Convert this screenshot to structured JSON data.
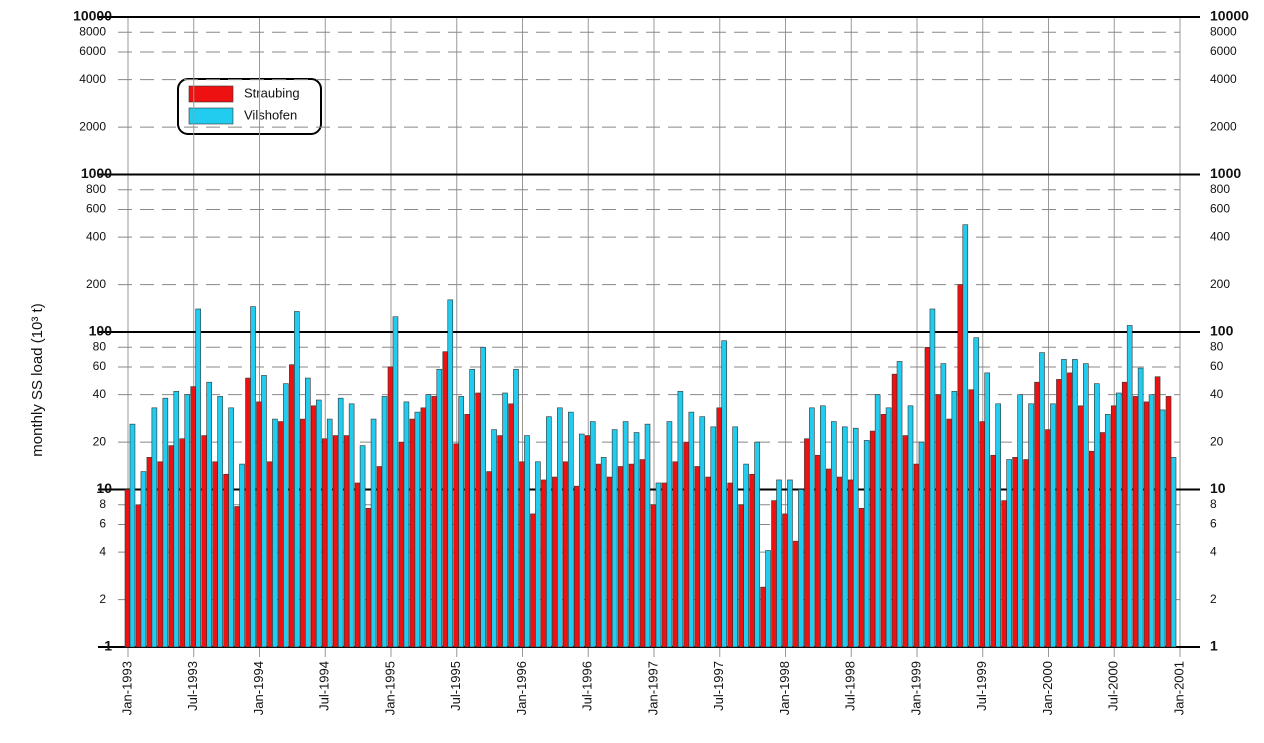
{
  "chart_data": {
    "type": "bar",
    "ylabel": "monthly SS load (10³ t)",
    "log_scale": true,
    "grid": true,
    "legend_position": "upper-left",
    "xlim": [
      0,
      96
    ],
    "xticks": [
      {
        "value": 0,
        "label": "Jan-1993"
      },
      {
        "value": 6,
        "label": "Jul-1993"
      },
      {
        "value": 12,
        "label": "Jan-1994"
      },
      {
        "value": 18,
        "label": "Jul-1994"
      },
      {
        "value": 24,
        "label": "Jan-1995"
      },
      {
        "value": 30,
        "label": "Jul-1995"
      },
      {
        "value": 36,
        "label": "Jan-1996"
      },
      {
        "value": 42,
        "label": "Jul-1996"
      },
      {
        "value": 48,
        "label": "Jan-1997"
      },
      {
        "value": 54,
        "label": "Jul-1997"
      },
      {
        "value": 60,
        "label": "Jan-1998"
      },
      {
        "value": 66,
        "label": "Jul-1998"
      },
      {
        "value": 72,
        "label": "Jan-1999"
      },
      {
        "value": 78,
        "label": "Jul-1999"
      },
      {
        "value": 84,
        "label": "Jan-2000"
      },
      {
        "value": 90,
        "label": "Jul-2000"
      },
      {
        "value": 96,
        "label": "Jan-2001"
      }
    ],
    "ylim": [
      1,
      10000
    ],
    "yticks": [
      1,
      2,
      4,
      6,
      8,
      10,
      20,
      40,
      60,
      80,
      100,
      200,
      400,
      600,
      800,
      1000,
      2000,
      4000,
      6000,
      8000,
      10000
    ],
    "series": [
      {
        "name": "Straubing",
        "color": "#ee1111",
        "values": [
          10,
          8,
          16,
          15,
          19,
          21,
          45,
          22,
          15,
          12.5,
          7.8,
          51,
          36,
          15,
          27,
          62,
          28,
          34,
          21,
          22,
          22,
          11,
          7.6,
          14,
          60,
          20,
          28,
          33,
          39,
          75,
          19.5,
          30,
          41,
          13,
          22,
          35,
          15,
          7,
          11.5,
          12,
          15,
          10.5,
          22,
          14.5,
          12,
          14,
          14.5,
          15.5,
          8,
          11,
          15,
          20,
          14,
          12,
          33,
          11,
          8,
          12.5,
          2.4,
          8.5,
          7,
          4.7,
          21,
          16.5,
          13.5,
          12,
          11.5,
          7.6,
          23.5,
          30,
          54,
          22,
          14.5,
          80,
          40,
          28,
          200,
          43,
          27,
          16.5,
          8.5,
          16,
          15.5,
          48,
          24,
          50,
          55,
          34,
          17.5,
          23,
          34,
          48,
          39,
          36,
          52,
          39
        ]
      },
      {
        "name": "Vilshofen",
        "color": "#22ccee",
        "values": [
          26,
          13,
          33,
          38,
          42,
          40,
          140,
          48,
          39,
          33,
          14.5,
          145,
          53,
          28,
          47,
          135,
          51,
          37,
          28,
          38,
          35,
          19,
          28,
          39,
          125,
          36,
          31,
          40,
          58,
          160,
          39,
          58,
          80,
          24,
          41,
          58,
          22,
          15,
          29,
          33,
          31,
          22.5,
          27,
          16,
          24,
          27,
          23,
          26,
          11,
          27,
          42,
          31,
          29,
          25,
          88,
          25,
          14.5,
          20,
          4.1,
          11.5,
          11.5,
          10,
          33,
          34,
          27,
          25,
          24.5,
          20.5,
          40,
          33,
          65,
          34,
          20,
          140,
          63,
          42,
          480,
          92,
          55,
          35,
          15.5,
          40,
          35,
          74,
          35,
          67,
          67,
          63,
          47,
          30,
          41,
          110,
          59,
          40,
          32,
          16
        ]
      }
    ]
  }
}
